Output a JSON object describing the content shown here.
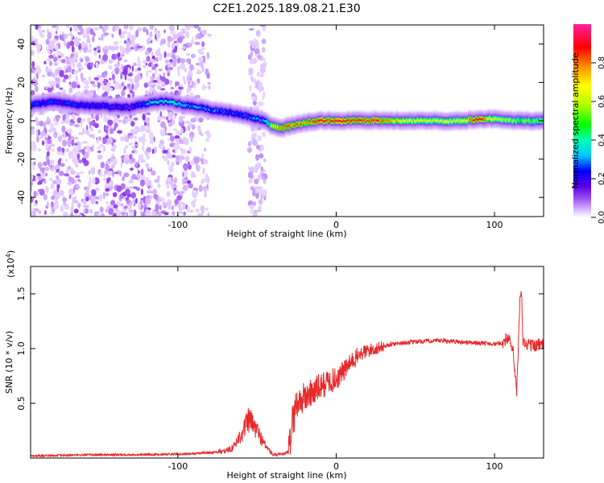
{
  "title": "C2E1.2025.189.08.21.E30",
  "chart_data": [
    {
      "type": "heatmap",
      "xlabel": "Height of straight line (km)",
      "ylabel": "Frequency (Hz)",
      "xlim": [
        -193,
        131
      ],
      "ylim": [
        -50,
        50
      ],
      "x_ticks": [
        -100,
        0,
        100
      ],
      "y_ticks": [
        -40,
        -20,
        0,
        20,
        40
      ],
      "grid": false,
      "colorbar": {
        "label": "Normalized spectral amplitude",
        "range": [
          0,
          1
        ],
        "ticks": [
          "0.0",
          "0.2",
          "0.4",
          "0.6",
          "0.8"
        ],
        "colormap": [
          "#ffffff",
          "#d8b8ff",
          "#9a4cf0",
          "#5a00e8",
          "#0000ff",
          "#00c8ff",
          "#00ffb0",
          "#00ff00",
          "#b0ff00",
          "#ffff00",
          "#ff9000",
          "#ff0000",
          "#ff20a0"
        ]
      },
      "ridge": {
        "x": [
          -193,
          -180,
          -170,
          -160,
          -130,
          -115,
          -105,
          -95,
          -85,
          -75,
          -65,
          -55,
          -45,
          -40,
          -35,
          -30,
          -20,
          -10,
          0,
          20,
          50,
          80,
          90,
          100,
          110,
          131
        ],
        "y": [
          8,
          10,
          9,
          8,
          7,
          10,
          10,
          8,
          7,
          5,
          4,
          2,
          0,
          -3,
          -4,
          -3,
          -1,
          0,
          0,
          0,
          0,
          0,
          1,
          1,
          0,
          0
        ],
        "amplitude": [
          0.35,
          0.3,
          0.32,
          0.3,
          0.25,
          0.45,
          0.5,
          0.42,
          0.38,
          0.36,
          0.33,
          0.35,
          0.4,
          0.75,
          0.82,
          0.85,
          0.85,
          0.88,
          0.9,
          0.92,
          0.7,
          0.72,
          0.95,
          0.7,
          0.65,
          0.6
        ]
      }
    },
    {
      "type": "line",
      "xlabel": "Height of straight line (km)",
      "ylabel": "SNR (10 * v/v)",
      "y_multiplier": "(x10",
      "y_multiplier_exp": "4",
      "y_multiplier_close": ")",
      "xlim": [
        -193,
        131
      ],
      "ylim": [
        0,
        1.75
      ],
      "x_ticks": [
        -100,
        0,
        100
      ],
      "y_ticks": [
        0.5,
        1.0,
        1.5
      ],
      "color": "#e8282a",
      "series_points": {
        "x": [
          -193,
          -150,
          -120,
          -90,
          -80,
          -70,
          -65,
          -60,
          -55,
          -50,
          -45,
          -40,
          -35,
          -30,
          -28,
          -25,
          -20,
          -15,
          -10,
          -5,
          0,
          5,
          10,
          15,
          20,
          25,
          30,
          35,
          40,
          50,
          60,
          70,
          80,
          90,
          95,
          100,
          105,
          108,
          110,
          112,
          113,
          114,
          115,
          116,
          117,
          118,
          120,
          125,
          131
        ],
        "y": [
          0.02,
          0.03,
          0.03,
          0.04,
          0.05,
          0.06,
          0.1,
          0.22,
          0.35,
          0.25,
          0.12,
          0.03,
          0.03,
          0.05,
          0.3,
          0.5,
          0.55,
          0.6,
          0.65,
          0.7,
          0.72,
          0.8,
          0.88,
          0.95,
          0.98,
          1.0,
          1.02,
          1.04,
          1.05,
          1.06,
          1.07,
          1.07,
          1.06,
          1.05,
          1.05,
          1.04,
          1.05,
          1.1,
          1.05,
          0.95,
          0.75,
          0.6,
          1.0,
          1.4,
          1.55,
          1.05,
          1.04,
          1.03,
          1.04
        ]
      }
    }
  ]
}
